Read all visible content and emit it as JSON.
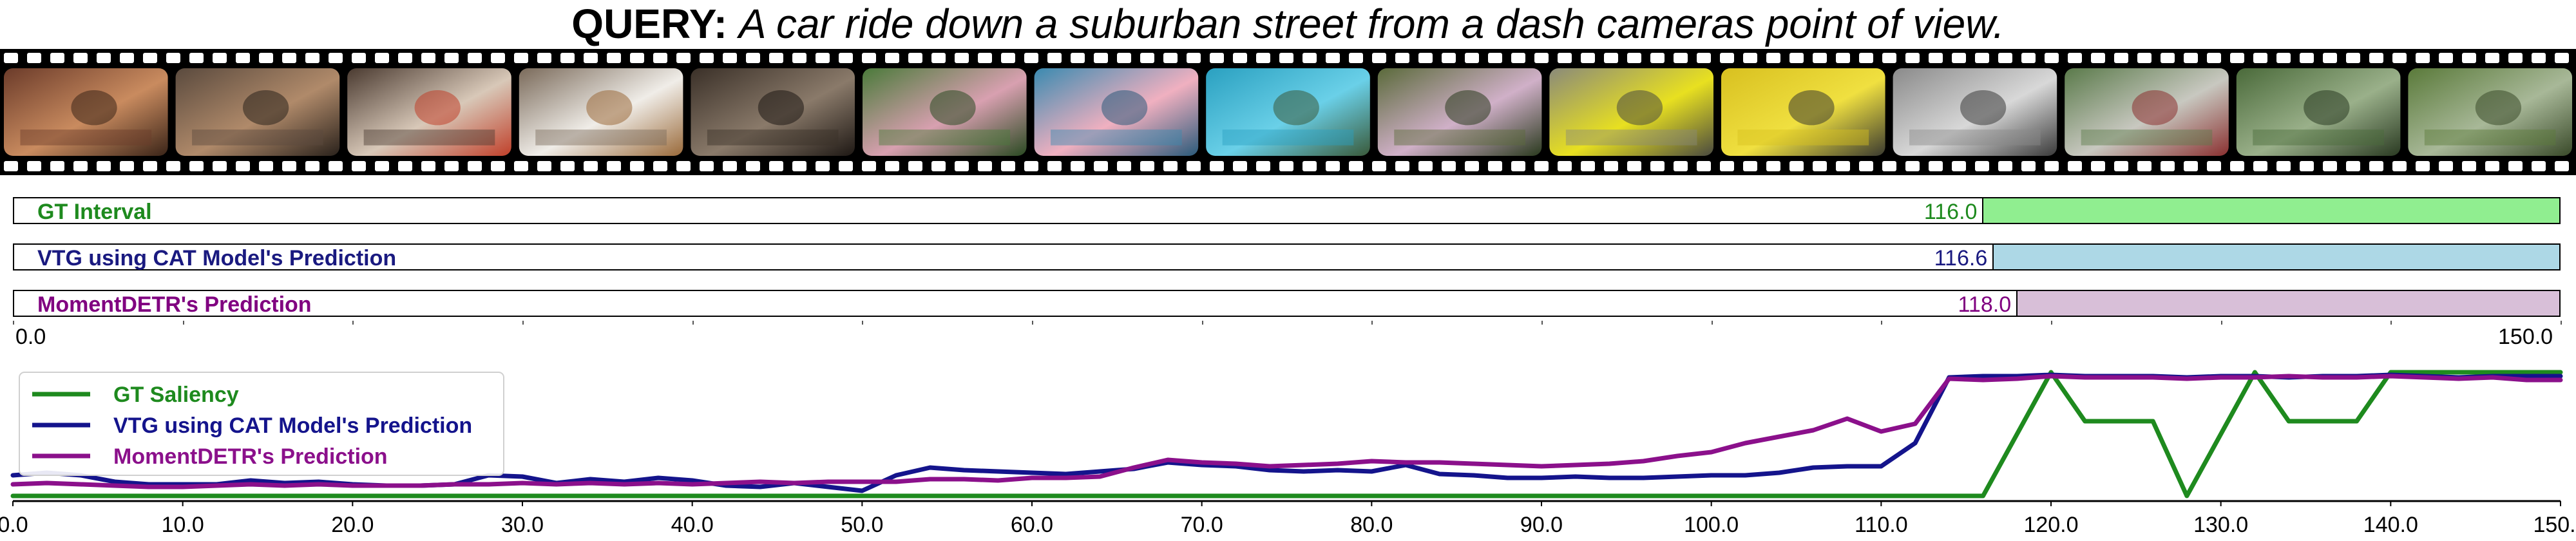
{
  "query": {
    "label": "QUERY:",
    "text": "A car ride down a suburban street from a dash cameras point of view."
  },
  "filmstrip": {
    "frame_count": 15,
    "frames": [
      "frame-1",
      "frame-2",
      "frame-3",
      "frame-4",
      "frame-5",
      "frame-6",
      "frame-7",
      "frame-8",
      "frame-9",
      "frame-10",
      "frame-11",
      "frame-12",
      "frame-13",
      "frame-14",
      "frame-15"
    ]
  },
  "timeline": {
    "min": 0.0,
    "max": 150.0,
    "min_label": "0.0",
    "max_label": "150.0",
    "rows": [
      {
        "label": "GT Interval",
        "start": 116.0,
        "end": 150.0,
        "start_label": "116.0",
        "color": "#1e8a1e",
        "fill": "#90ee90"
      },
      {
        "label": "VTG using CAT Model's Prediction",
        "start": 116.6,
        "end": 150.0,
        "start_label": "116.6",
        "color": "#1a1a80",
        "fill": "#add8e6"
      },
      {
        "label": "MomentDETR's Prediction",
        "start": 118.0,
        "end": 150.0,
        "start_label": "118.0",
        "color": "#800080",
        "fill": "#d8bfd8"
      }
    ]
  },
  "chart_data": {
    "type": "line",
    "xlim": [
      0,
      150
    ],
    "ylim": [
      0,
      1
    ],
    "x_ticks": [
      "0.0",
      "10.0",
      "20.0",
      "30.0",
      "40.0",
      "50.0",
      "60.0",
      "70.0",
      "80.0",
      "90.0",
      "100.0",
      "110.0",
      "120.0",
      "130.0",
      "140.0",
      "150.0"
    ],
    "legend_position": "top-left",
    "series": [
      {
        "name": "GT Saliency",
        "color": "#1e8a1e",
        "x": [
          0,
          116,
          120,
          122,
          126,
          128,
          132,
          134,
          138,
          140,
          150
        ],
        "y": [
          0.04,
          0.04,
          1.0,
          0.62,
          0.62,
          0.04,
          1.0,
          0.62,
          0.62,
          1.0,
          1.0
        ]
      },
      {
        "name": "VTG using CAT Model's Prediction",
        "color": "#14148c",
        "x": [
          0,
          2,
          4,
          6,
          8,
          10,
          12,
          14,
          16,
          18,
          20,
          22,
          24,
          26,
          28,
          30,
          32,
          34,
          36,
          38,
          40,
          42,
          44,
          46,
          48,
          50,
          52,
          54,
          56,
          58,
          60,
          62,
          64,
          66,
          68,
          70,
          72,
          74,
          76,
          78,
          80,
          82,
          84,
          86,
          88,
          90,
          92,
          94,
          96,
          98,
          100,
          102,
          104,
          106,
          108,
          110,
          112,
          114,
          116,
          118,
          120,
          122,
          124,
          126,
          128,
          130,
          132,
          134,
          136,
          138,
          140,
          142,
          144,
          146,
          148,
          150
        ],
        "y": [
          0.2,
          0.22,
          0.2,
          0.15,
          0.13,
          0.13,
          0.13,
          0.16,
          0.14,
          0.15,
          0.13,
          0.12,
          0.12,
          0.13,
          0.2,
          0.19,
          0.14,
          0.17,
          0.15,
          0.18,
          0.16,
          0.12,
          0.11,
          0.14,
          0.11,
          0.08,
          0.2,
          0.26,
          0.24,
          0.23,
          0.22,
          0.21,
          0.23,
          0.25,
          0.3,
          0.28,
          0.27,
          0.24,
          0.23,
          0.24,
          0.23,
          0.28,
          0.21,
          0.2,
          0.18,
          0.18,
          0.19,
          0.18,
          0.18,
          0.19,
          0.2,
          0.2,
          0.22,
          0.26,
          0.27,
          0.27,
          0.45,
          0.96,
          0.97,
          0.97,
          0.98,
          0.97,
          0.97,
          0.97,
          0.96,
          0.97,
          0.97,
          0.96,
          0.97,
          0.97,
          0.98,
          0.97,
          0.96,
          0.97,
          0.97,
          0.97
        ]
      },
      {
        "name": "MomentDETR's Prediction",
        "color": "#8b108b",
        "x": [
          0,
          2,
          4,
          6,
          8,
          10,
          12,
          14,
          16,
          18,
          20,
          22,
          24,
          26,
          28,
          30,
          32,
          34,
          36,
          38,
          40,
          42,
          44,
          46,
          48,
          50,
          52,
          54,
          56,
          58,
          60,
          62,
          64,
          66,
          68,
          70,
          72,
          74,
          76,
          78,
          80,
          82,
          84,
          86,
          88,
          90,
          92,
          94,
          96,
          98,
          100,
          102,
          104,
          106,
          108,
          110,
          112,
          114,
          116,
          118,
          120,
          122,
          124,
          126,
          128,
          130,
          132,
          134,
          136,
          138,
          140,
          142,
          144,
          146,
          148,
          150
        ],
        "y": [
          0.13,
          0.14,
          0.13,
          0.12,
          0.11,
          0.11,
          0.12,
          0.13,
          0.12,
          0.13,
          0.12,
          0.12,
          0.12,
          0.13,
          0.13,
          0.14,
          0.13,
          0.14,
          0.13,
          0.14,
          0.13,
          0.14,
          0.15,
          0.14,
          0.15,
          0.15,
          0.15,
          0.17,
          0.17,
          0.16,
          0.18,
          0.18,
          0.19,
          0.26,
          0.32,
          0.3,
          0.29,
          0.27,
          0.28,
          0.29,
          0.31,
          0.3,
          0.3,
          0.29,
          0.28,
          0.27,
          0.28,
          0.29,
          0.31,
          0.35,
          0.38,
          0.45,
          0.5,
          0.55,
          0.64,
          0.54,
          0.6,
          0.95,
          0.94,
          0.95,
          0.97,
          0.96,
          0.96,
          0.96,
          0.95,
          0.96,
          0.96,
          0.97,
          0.96,
          0.96,
          0.97,
          0.96,
          0.95,
          0.96,
          0.94,
          0.94
        ]
      }
    ]
  }
}
